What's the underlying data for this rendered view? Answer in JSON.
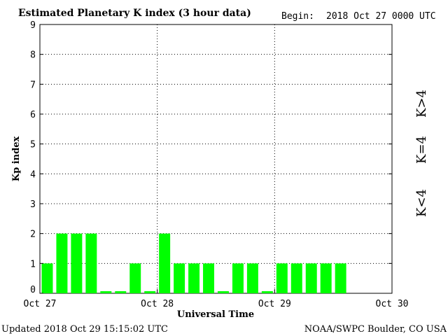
{
  "chart_data": {
    "type": "bar",
    "title": "Estimated Planetary K index (3 hour data)",
    "begin_label": "Begin:",
    "begin_value": "2018 Oct 27 0000 UTC",
    "xlabel": "Universal Time",
    "ylabel": "Kp index",
    "ylim": [
      0,
      9
    ],
    "yticks": [
      "0",
      "1",
      "2",
      "3",
      "4",
      "5",
      "6",
      "7",
      "8",
      "9"
    ],
    "xticks": [
      "Oct 27",
      "Oct 28",
      "Oct 29",
      "Oct 30"
    ],
    "grid": "dotted at day boundaries and integer Kp",
    "bar_color": "#00ff00",
    "values": [
      1,
      2,
      2,
      2,
      0.07,
      0.07,
      1,
      0.07,
      2,
      1,
      1,
      1,
      0.07,
      1,
      1,
      0.07,
      1,
      1,
      1,
      1,
      1
    ]
  },
  "legend": [
    {
      "label": "K>4",
      "color": "#ff2000"
    },
    {
      "label": "K=4",
      "color": "#ffd000"
    },
    {
      "label": "K<4",
      "color": "#22dd22"
    }
  ],
  "footer": {
    "updated": "Updated 2018 Oct 29 15:15:02 UTC",
    "source": "NOAA/SWPC Boulder, CO USA"
  }
}
